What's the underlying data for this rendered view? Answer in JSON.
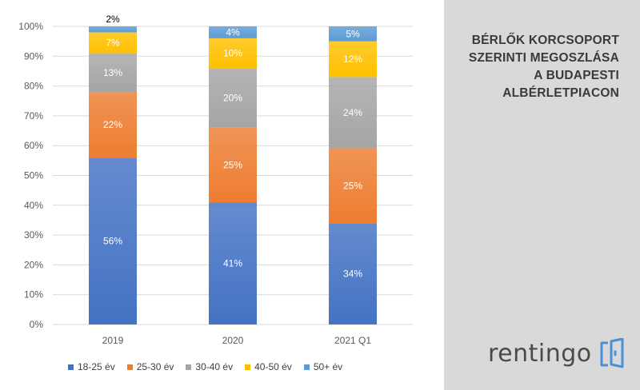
{
  "chart_data": {
    "type": "bar",
    "stacked": true,
    "categories": [
      "2019",
      "2020",
      "2021 Q1"
    ],
    "series": [
      {
        "name": "18-25 év",
        "color": "#4472c4",
        "values": [
          56,
          41,
          34
        ]
      },
      {
        "name": "25-30 év",
        "color": "#ed7d31",
        "values": [
          22,
          25,
          25
        ]
      },
      {
        "name": "30-40 év",
        "color": "#a5a5a5",
        "values": [
          13,
          20,
          24
        ]
      },
      {
        "name": "40-50 év",
        "color": "#ffc000",
        "values": [
          7,
          10,
          12
        ]
      },
      {
        "name": "50+ év",
        "color": "#5b9bd5",
        "values": [
          2,
          4,
          5
        ]
      }
    ],
    "ylim": [
      0,
      100
    ],
    "yticks": [
      "0%",
      "10%",
      "20%",
      "30%",
      "40%",
      "50%",
      "60%",
      "70%",
      "80%",
      "90%",
      "100%"
    ],
    "data_labels": [
      [
        "56%",
        "22%",
        "13%",
        "7%",
        "2%"
      ],
      [
        "41%",
        "25%",
        "20%",
        "10%",
        "4%"
      ],
      [
        "34%",
        "25%",
        "24%",
        "12%",
        "5%"
      ]
    ],
    "grid": true,
    "legend_position": "bottom"
  },
  "panel": {
    "title_lines": [
      "BÉRLŐK KORCSOPORT",
      "SZERINTI MEGOSZLÁSA",
      "A BUDAPESTI",
      "ALBÉRLETPIACON"
    ],
    "brand": "rentingo",
    "brand_icon": "door-icon"
  }
}
